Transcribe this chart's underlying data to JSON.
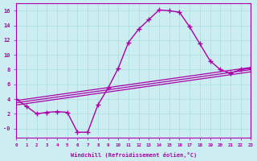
{
  "xlabel": "Windchill (Refroidissement éolien,°C)",
  "bg_color": "#cceef2",
  "line_color": "#aa00aa",
  "grid_color": "#aadddd",
  "xlim": [
    0,
    23
  ],
  "ylim": [
    -1.2,
    17
  ],
  "xticks": [
    0,
    1,
    2,
    3,
    4,
    5,
    6,
    7,
    8,
    9,
    10,
    11,
    12,
    13,
    14,
    15,
    16,
    17,
    18,
    19,
    20,
    21,
    22,
    23
  ],
  "yticks": [
    0,
    2,
    4,
    6,
    8,
    10,
    12,
    14,
    16
  ],
  "ytick_labels": [
    "-0",
    "2",
    "4",
    "6",
    "8",
    "10",
    "12",
    "14",
    "16"
  ],
  "line_main_x": [
    0,
    1,
    2,
    3,
    4,
    5,
    6,
    7,
    8,
    9,
    10,
    11,
    12,
    13,
    14,
    15,
    16,
    17,
    18,
    19,
    20,
    21,
    22,
    23
  ],
  "line_main_y": [
    4.0,
    3.0,
    2.0,
    2.2,
    2.3,
    2.2,
    -0.5,
    -0.5,
    3.2,
    5.5,
    8.2,
    11.7,
    13.5,
    14.8,
    16.1,
    16.0,
    15.8,
    13.8,
    11.5,
    9.2,
    8.0,
    7.5,
    8.0,
    8.2
  ],
  "line2_x": [
    0,
    23
  ],
  "line2_y": [
    3.8,
    8.3
  ],
  "line3_x": [
    0,
    23
  ],
  "line3_y": [
    3.5,
    8.0
  ],
  "line4_x": [
    0,
    23
  ],
  "line4_y": [
    3.2,
    7.7
  ]
}
